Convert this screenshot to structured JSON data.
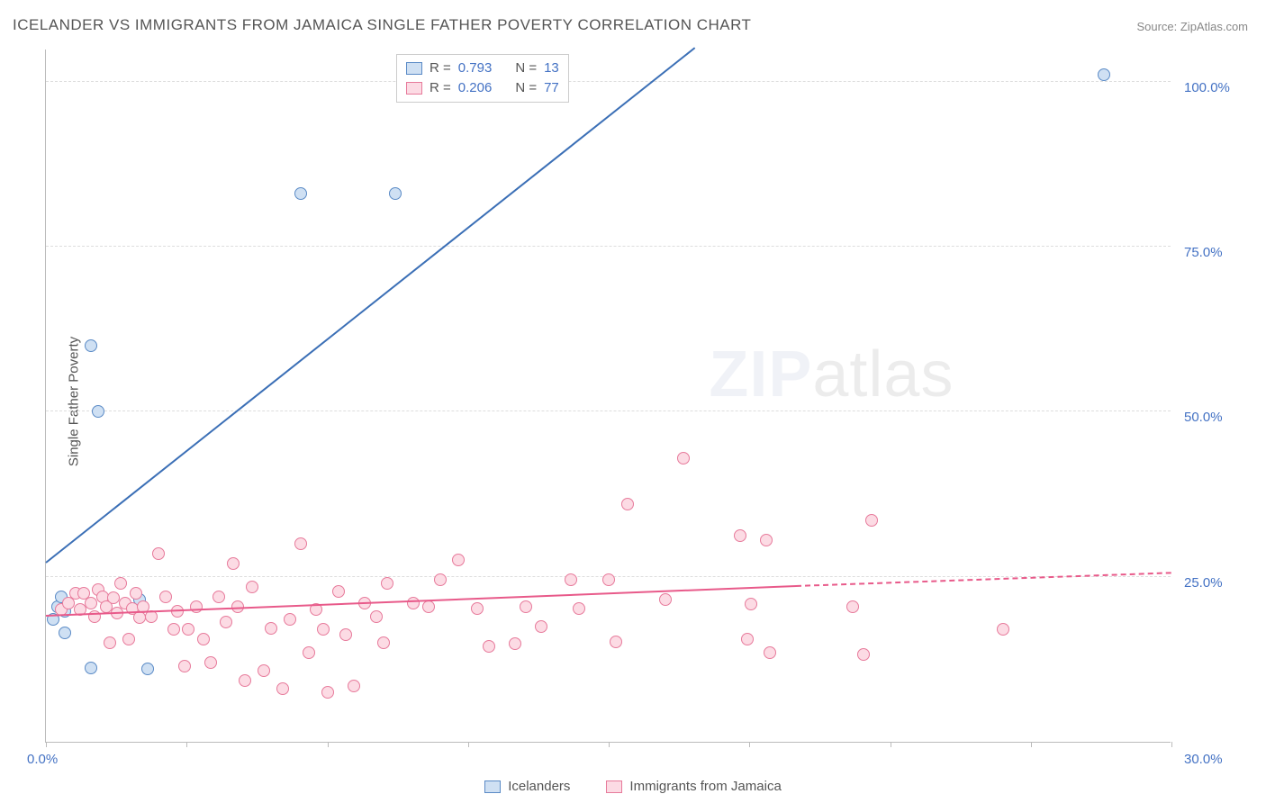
{
  "title": "ICELANDER VS IMMIGRANTS FROM JAMAICA SINGLE FATHER POVERTY CORRELATION CHART",
  "source_label": "Source: ZipAtlas.com",
  "yaxis_title": "Single Father Poverty",
  "watermark_zip": "ZIP",
  "watermark_atlas": "atlas",
  "chart": {
    "type": "scatter",
    "xlim": [
      0,
      30
    ],
    "ylim": [
      0,
      105
    ],
    "yticks": [
      25,
      50,
      75,
      100
    ],
    "ytick_labels": [
      "25.0%",
      "50.0%",
      "75.0%",
      "100.0%"
    ],
    "xticks": [
      0,
      3.75,
      7.5,
      11.25,
      15,
      18.75,
      22.5,
      26.25,
      30
    ],
    "x_label_0": "0.0%",
    "x_label_30": "30.0%",
    "background_color": "#ffffff",
    "grid_color": "#dddddd",
    "marker_radius": 7
  },
  "series": [
    {
      "name": "Icelanders",
      "fill": "#cfe0f3",
      "stroke": "#5a8ac6",
      "line_color": "#3b6fb6",
      "R": "0.793",
      "N": "13",
      "trend": {
        "x1": 0,
        "y1": 27,
        "x2": 17.3,
        "y2": 105,
        "dash": "solid"
      },
      "points": [
        [
          0.2,
          18.5
        ],
        [
          0.3,
          20.5
        ],
        [
          0.4,
          22
        ],
        [
          0.5,
          19.8
        ],
        [
          0.5,
          16.5
        ],
        [
          1.2,
          11.2
        ],
        [
          2.7,
          11
        ],
        [
          2.5,
          21.5
        ],
        [
          1.4,
          50
        ],
        [
          1.2,
          60
        ],
        [
          6.8,
          83
        ],
        [
          9.3,
          83
        ],
        [
          28.2,
          101
        ]
      ]
    },
    {
      "name": "Immigrants from Jamaica",
      "fill": "#fcdbe4",
      "stroke": "#e77a9b",
      "line_color": "#e85a8a",
      "R": "0.206",
      "N": "77",
      "trend": {
        "x1": 0,
        "y1": 19,
        "x2": 20,
        "y2": 23.5,
        "dash": "solid"
      },
      "trend_ext": {
        "x1": 20,
        "y1": 23.5,
        "x2": 30,
        "y2": 25.5,
        "dash": "dashed"
      },
      "points": [
        [
          0.4,
          20
        ],
        [
          0.6,
          21
        ],
        [
          0.8,
          22.5
        ],
        [
          0.9,
          20
        ],
        [
          1.0,
          22.5
        ],
        [
          1.2,
          21
        ],
        [
          1.3,
          19
        ],
        [
          1.4,
          23
        ],
        [
          1.5,
          22
        ],
        [
          1.6,
          20.5
        ],
        [
          1.7,
          15
        ],
        [
          1.8,
          21.8
        ],
        [
          1.9,
          19.5
        ],
        [
          2.0,
          24
        ],
        [
          2.1,
          21
        ],
        [
          2.2,
          15.5
        ],
        [
          2.3,
          20.2
        ],
        [
          2.4,
          22.5
        ],
        [
          2.5,
          18.8
        ],
        [
          2.6,
          20.5
        ],
        [
          2.8,
          19.0
        ],
        [
          3.0,
          28.5
        ],
        [
          3.2,
          22
        ],
        [
          3.4,
          17
        ],
        [
          3.5,
          19.8
        ],
        [
          3.7,
          11.5
        ],
        [
          3.8,
          17
        ],
        [
          4.0,
          20.5
        ],
        [
          4.2,
          15.5
        ],
        [
          4.4,
          12
        ],
        [
          4.6,
          22
        ],
        [
          4.8,
          18.2
        ],
        [
          5.0,
          27
        ],
        [
          5.1,
          20.5
        ],
        [
          5.3,
          9.3
        ],
        [
          5.5,
          23.5
        ],
        [
          5.8,
          10.8
        ],
        [
          6.0,
          17.2
        ],
        [
          6.3,
          8
        ],
        [
          6.5,
          18.5
        ],
        [
          6.8,
          30
        ],
        [
          7.0,
          13.5
        ],
        [
          7.2,
          20
        ],
        [
          7.4,
          17
        ],
        [
          7.5,
          7.5
        ],
        [
          7.8,
          22.8
        ],
        [
          8.0,
          16.2
        ],
        [
          8.2,
          8.5
        ],
        [
          8.5,
          21
        ],
        [
          8.8,
          19
        ],
        [
          9.0,
          15
        ],
        [
          9.1,
          24
        ],
        [
          9.8,
          21
        ],
        [
          10.2,
          20.5
        ],
        [
          10.5,
          24.5
        ],
        [
          11.0,
          27.5
        ],
        [
          11.5,
          20.2
        ],
        [
          11.8,
          14.5
        ],
        [
          12.5,
          14.8
        ],
        [
          12.8,
          20.5
        ],
        [
          13.2,
          17.5
        ],
        [
          14.0,
          24.5
        ],
        [
          14.2,
          20.2
        ],
        [
          15.0,
          24.5
        ],
        [
          15.2,
          15.2
        ],
        [
          15.5,
          36
        ],
        [
          16.5,
          21.5
        ],
        [
          17.0,
          43
        ],
        [
          18.5,
          31.2
        ],
        [
          18.7,
          15.5
        ],
        [
          18.8,
          20.8
        ],
        [
          19.2,
          30.5
        ],
        [
          19.3,
          13.5
        ],
        [
          21.5,
          20.5
        ],
        [
          22.0,
          33.5
        ],
        [
          21.8,
          13.2
        ],
        [
          25.5,
          17
        ]
      ]
    }
  ],
  "legend_top": {
    "r_label": "R = ",
    "n_label": "N = "
  },
  "legend_bottom": {
    "items": [
      "Icelanders",
      "Immigrants from Jamaica"
    ]
  }
}
